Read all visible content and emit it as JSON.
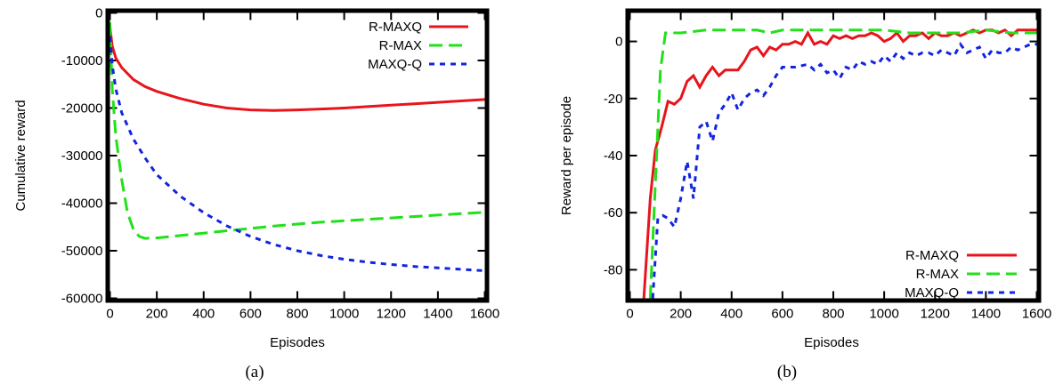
{
  "chart_data": [
    {
      "type": "line",
      "caption": "(a)",
      "xlabel": "Episodes",
      "ylabel": "Cumulative reward",
      "xlim": [
        0,
        1600
      ],
      "ylim": [
        -60000,
        0
      ],
      "xticks": [
        0,
        200,
        400,
        600,
        800,
        1000,
        1200,
        1400,
        1600
      ],
      "yticks": [
        0,
        -10000,
        -20000,
        -30000,
        -40000,
        -50000,
        -60000
      ],
      "legend_position": "top-right",
      "series": [
        {
          "name": "R-MAXQ",
          "color": "#e8141c",
          "dash": "solid",
          "points": [
            [
              0,
              -3000
            ],
            [
              10,
              -7000
            ],
            [
              25,
              -9500
            ],
            [
              50,
              -11500
            ],
            [
              100,
              -14000
            ],
            [
              150,
              -15500
            ],
            [
              200,
              -16500
            ],
            [
              300,
              -18000
            ],
            [
              400,
              -19200
            ],
            [
              500,
              -20000
            ],
            [
              600,
              -20400
            ],
            [
              700,
              -20500
            ],
            [
              800,
              -20400
            ],
            [
              900,
              -20200
            ],
            [
              1000,
              -20000
            ],
            [
              1100,
              -19700
            ],
            [
              1200,
              -19400
            ],
            [
              1300,
              -19100
            ],
            [
              1400,
              -18800
            ],
            [
              1500,
              -18500
            ],
            [
              1600,
              -18200
            ]
          ]
        },
        {
          "name": "R-MAX",
          "color": "#22e01a",
          "dash": "long",
          "points": [
            [
              0,
              -2000
            ],
            [
              10,
              -16000
            ],
            [
              25,
              -26000
            ],
            [
              50,
              -35000
            ],
            [
              75,
              -42000
            ],
            [
              100,
              -45500
            ],
            [
              125,
              -47000
            ],
            [
              150,
              -47400
            ],
            [
              200,
              -47300
            ],
            [
              300,
              -46800
            ],
            [
              400,
              -46300
            ],
            [
              500,
              -45800
            ],
            [
              600,
              -45300
            ],
            [
              700,
              -44800
            ],
            [
              800,
              -44400
            ],
            [
              900,
              -44000
            ],
            [
              1000,
              -43700
            ],
            [
              1100,
              -43400
            ],
            [
              1200,
              -43100
            ],
            [
              1300,
              -42800
            ],
            [
              1400,
              -42500
            ],
            [
              1500,
              -42200
            ],
            [
              1600,
              -41900
            ]
          ]
        },
        {
          "name": "MAXQ-Q",
          "color": "#1224e0",
          "dash": "short",
          "points": [
            [
              0,
              -5000
            ],
            [
              10,
              -11000
            ],
            [
              25,
              -16000
            ],
            [
              50,
              -21000
            ],
            [
              100,
              -26500
            ],
            [
              150,
              -30500
            ],
            [
              200,
              -34000
            ],
            [
              300,
              -38500
            ],
            [
              400,
              -42000
            ],
            [
              500,
              -44800
            ],
            [
              600,
              -47000
            ],
            [
              700,
              -48700
            ],
            [
              800,
              -50000
            ],
            [
              900,
              -51000
            ],
            [
              1000,
              -51800
            ],
            [
              1100,
              -52400
            ],
            [
              1200,
              -52900
            ],
            [
              1300,
              -53300
            ],
            [
              1400,
              -53600
            ],
            [
              1500,
              -53900
            ],
            [
              1600,
              -54200
            ]
          ]
        }
      ]
    },
    {
      "type": "line",
      "caption": "(b)",
      "xlabel": "Episodes",
      "ylabel": "Reward per episode",
      "xlim": [
        0,
        1600
      ],
      "ylim": [
        -90,
        10
      ],
      "xticks": [
        0,
        200,
        400,
        600,
        800,
        1000,
        1200,
        1400,
        1600
      ],
      "yticks": [
        0,
        -20,
        -40,
        -60,
        -80
      ],
      "legend_position": "bottom-right",
      "series": [
        {
          "name": "R-MAXQ",
          "color": "#e8141c",
          "dash": "solid",
          "points": [
            [
              55,
              -90
            ],
            [
              80,
              -55
            ],
            [
              100,
              -38
            ],
            [
              125,
              -30
            ],
            [
              150,
              -21
            ],
            [
              175,
              -22
            ],
            [
              200,
              -20
            ],
            [
              225,
              -14
            ],
            [
              250,
              -12
            ],
            [
              275,
              -16
            ],
            [
              300,
              -12
            ],
            [
              325,
              -9
            ],
            [
              350,
              -12
            ],
            [
              375,
              -10
            ],
            [
              400,
              -10
            ],
            [
              425,
              -10
            ],
            [
              450,
              -7
            ],
            [
              475,
              -3
            ],
            [
              500,
              -2
            ],
            [
              525,
              -5
            ],
            [
              550,
              -2
            ],
            [
              575,
              -3
            ],
            [
              600,
              -1
            ],
            [
              625,
              -1
            ],
            [
              650,
              0
            ],
            [
              675,
              -1
            ],
            [
              700,
              3
            ],
            [
              725,
              -1
            ],
            [
              750,
              0
            ],
            [
              775,
              -1
            ],
            [
              800,
              2
            ],
            [
              825,
              1
            ],
            [
              850,
              2
            ],
            [
              875,
              1
            ],
            [
              900,
              2
            ],
            [
              925,
              2
            ],
            [
              950,
              3
            ],
            [
              975,
              2
            ],
            [
              1000,
              0
            ],
            [
              1025,
              1
            ],
            [
              1050,
              3
            ],
            [
              1075,
              0
            ],
            [
              1100,
              2
            ],
            [
              1125,
              2
            ],
            [
              1150,
              3
            ],
            [
              1175,
              1
            ],
            [
              1200,
              3
            ],
            [
              1225,
              2
            ],
            [
              1250,
              2
            ],
            [
              1275,
              3
            ],
            [
              1300,
              2
            ],
            [
              1325,
              3
            ],
            [
              1350,
              4
            ],
            [
              1375,
              3
            ],
            [
              1400,
              4
            ],
            [
              1425,
              4
            ],
            [
              1450,
              3
            ],
            [
              1475,
              4
            ],
            [
              1500,
              2
            ],
            [
              1525,
              4
            ],
            [
              1550,
              4
            ],
            [
              1575,
              4
            ],
            [
              1600,
              4
            ]
          ]
        },
        {
          "name": "R-MAX",
          "color": "#22e01a",
          "dash": "long",
          "points": [
            [
              80,
              -90
            ],
            [
              100,
              -50
            ],
            [
              120,
              -10
            ],
            [
              140,
              3
            ],
            [
              200,
              3
            ],
            [
              300,
              4
            ],
            [
              400,
              4
            ],
            [
              500,
              4
            ],
            [
              550,
              3
            ],
            [
              600,
              4
            ],
            [
              700,
              4
            ],
            [
              800,
              4
            ],
            [
              900,
              4
            ],
            [
              1000,
              4
            ],
            [
              1100,
              3
            ],
            [
              1200,
              3
            ],
            [
              1300,
              3
            ],
            [
              1400,
              4
            ],
            [
              1500,
              3
            ],
            [
              1600,
              3
            ]
          ]
        },
        {
          "name": "MAXQ-Q",
          "color": "#1224e0",
          "dash": "short",
          "points": [
            [
              90,
              -90
            ],
            [
              110,
              -62
            ],
            [
              130,
              -61
            ],
            [
              150,
              -62
            ],
            [
              175,
              -65
            ],
            [
              200,
              -55
            ],
            [
              225,
              -42
            ],
            [
              250,
              -55
            ],
            [
              275,
              -30
            ],
            [
              300,
              -28
            ],
            [
              325,
              -35
            ],
            [
              350,
              -25
            ],
            [
              375,
              -22
            ],
            [
              400,
              -18
            ],
            [
              425,
              -24
            ],
            [
              450,
              -20
            ],
            [
              475,
              -18
            ],
            [
              500,
              -17
            ],
            [
              525,
              -19
            ],
            [
              550,
              -16
            ],
            [
              575,
              -12
            ],
            [
              600,
              -9
            ],
            [
              650,
              -9
            ],
            [
              700,
              -8
            ],
            [
              725,
              -10
            ],
            [
              750,
              -8
            ],
            [
              775,
              -11
            ],
            [
              800,
              -10
            ],
            [
              825,
              -13
            ],
            [
              850,
              -9
            ],
            [
              875,
              -10
            ],
            [
              900,
              -7
            ],
            [
              925,
              -8
            ],
            [
              950,
              -7
            ],
            [
              975,
              -8
            ],
            [
              1000,
              -5
            ],
            [
              1025,
              -7
            ],
            [
              1050,
              -4
            ],
            [
              1075,
              -6
            ],
            [
              1100,
              -4
            ],
            [
              1125,
              -5
            ],
            [
              1150,
              -4
            ],
            [
              1175,
              -4
            ],
            [
              1200,
              -5
            ],
            [
              1225,
              -3
            ],
            [
              1250,
              -4
            ],
            [
              1275,
              -5
            ],
            [
              1300,
              -1
            ],
            [
              1325,
              -4
            ],
            [
              1350,
              -3
            ],
            [
              1375,
              -2
            ],
            [
              1400,
              -6
            ],
            [
              1425,
              -3
            ],
            [
              1450,
              -4
            ],
            [
              1475,
              -4
            ],
            [
              1500,
              -2
            ],
            [
              1525,
              -3
            ],
            [
              1550,
              -2
            ],
            [
              1575,
              -1
            ],
            [
              1600,
              -1
            ]
          ]
        }
      ]
    }
  ]
}
